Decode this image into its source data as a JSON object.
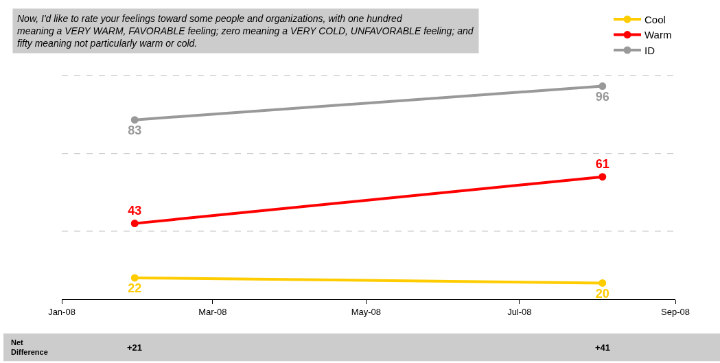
{
  "chart_data": {
    "type": "line",
    "title": "Now, I'd like to rate your feelings toward some people and organizations, with one hundred meaning a VERY WARM, FAVORABLE feeling; zero meaning a VERY COLD, UNFAVORABLE feeling; and fifty meaning not particularly warm or cold.",
    "x": [
      "2008-01-30",
      "2008-08-03"
    ],
    "series": [
      {
        "name": "Cool",
        "color": "#ffcc00",
        "values": [
          22,
          20
        ]
      },
      {
        "name": "Warm",
        "color": "#ff0000",
        "values": [
          43,
          61
        ]
      },
      {
        "name": "ID",
        "color": "#999999",
        "values": [
          83,
          96
        ]
      }
    ],
    "xlim": [
      "2008-01-01",
      "2008-09-01"
    ],
    "xticks": [
      {
        "value": "2008-01-01",
        "label": "Jan-08"
      },
      {
        "value": "2008-03-01",
        "label": "Mar-08"
      },
      {
        "value": "2008-05-01",
        "label": "May-08"
      },
      {
        "value": "2008-07-01",
        "label": "Jul-08"
      },
      {
        "value": "2008-09-01",
        "label": "Sep-08"
      }
    ],
    "ref_lines": [
      {
        "axis": "y",
        "value": 40,
        "color": "#bbbbbb",
        "line_style": "dashed"
      },
      {
        "axis": "y",
        "value": 70,
        "color": "#bbbbbb",
        "line_style": "dashed"
      },
      {
        "axis": "y",
        "value": 100,
        "color": "#bbbbbb",
        "line_style": "dashed"
      }
    ],
    "tick_labels": "x",
    "legend": "top right",
    "marker": "circle",
    "line_style": "solid",
    "data_labels": true,
    "annotations": [
      "Net Difference",
      "+21",
      "+41"
    ]
  }
}
